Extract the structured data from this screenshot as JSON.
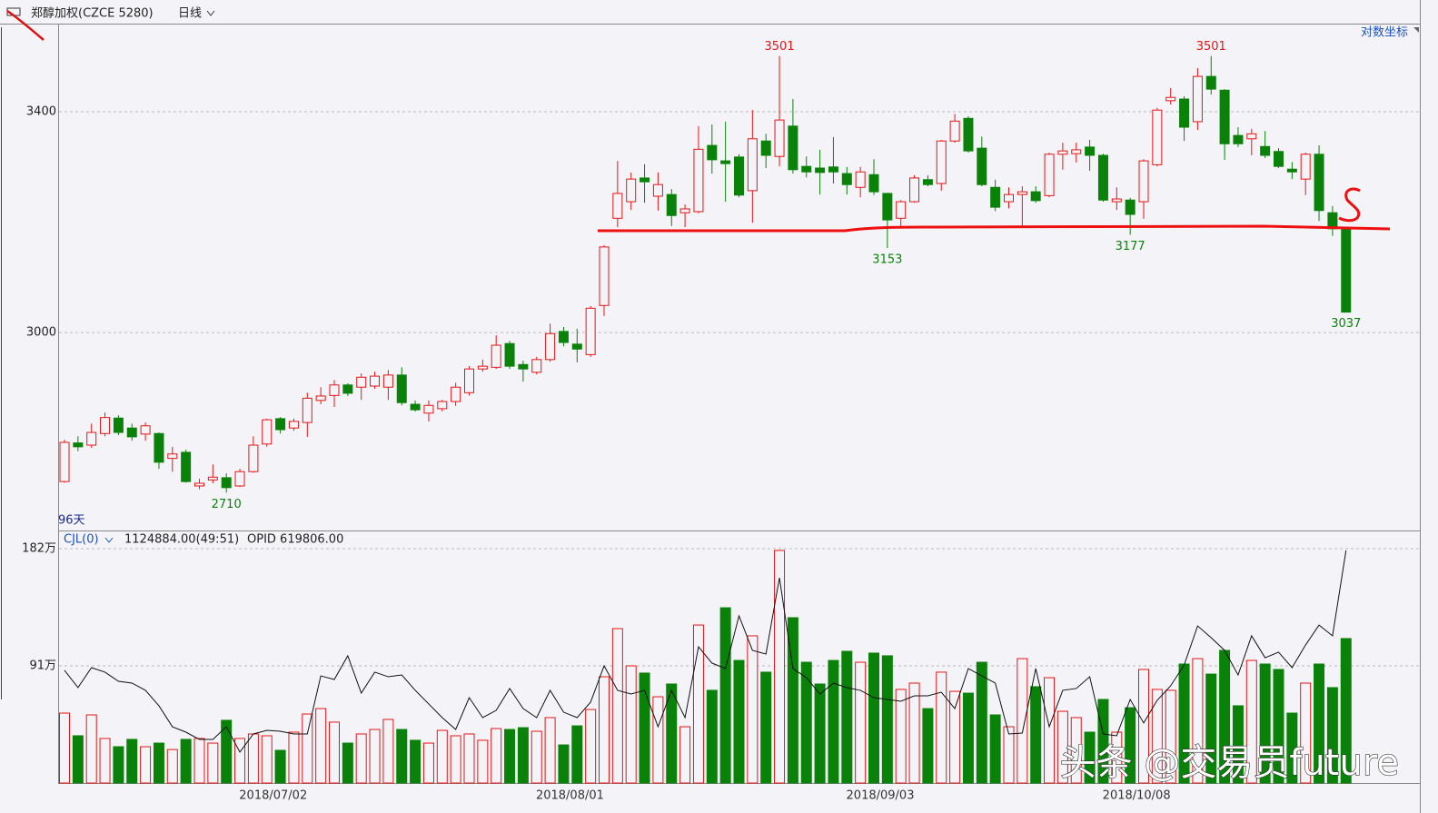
{
  "chart_data": [
    {
      "type": "candlestick",
      "title": "郑醇加权(CZCE 5280)",
      "period": "日线",
      "scale_button": "对数坐标",
      "day_count": "96天",
      "up_color": "#e81414",
      "down_color": "#0a820a",
      "log_scale": false,
      "grid": true,
      "ylim": [
        2643,
        3558
      ],
      "yticks": [
        3400,
        3000
      ],
      "categories": [
        null,
        null,
        null,
        null,
        null,
        null,
        null,
        null,
        null,
        null,
        null,
        null,
        null,
        null,
        null,
        "2018/07/02",
        null,
        null,
        null,
        null,
        null,
        null,
        null,
        null,
        null,
        null,
        null,
        null,
        null,
        null,
        null,
        null,
        null,
        null,
        null,
        null,
        null,
        "2018/08/01",
        null,
        null,
        null,
        null,
        null,
        null,
        null,
        null,
        null,
        null,
        null,
        null,
        null,
        null,
        null,
        null,
        null,
        null,
        null,
        null,
        null,
        null,
        "2018/09/03",
        null,
        null,
        null,
        null,
        null,
        null,
        null,
        null,
        null,
        null,
        null,
        null,
        null,
        null,
        null,
        null,
        null,
        null,
        "2018/10/08",
        null,
        null,
        null,
        null,
        null,
        null,
        null,
        null,
        null,
        null,
        null,
        null,
        null,
        null,
        null,
        null
      ],
      "open": [
        2730,
        2800,
        2796,
        2817,
        2845,
        2827,
        2816,
        2817,
        2772,
        2783,
        2722,
        2733,
        2737,
        2722,
        2748,
        2798,
        2844,
        2827,
        2837,
        2877,
        2886,
        2905,
        2901,
        2903,
        2901,
        2923,
        2870,
        2854,
        2862,
        2875,
        2891,
        2934,
        2937,
        2980,
        2942,
        2928,
        2951,
        3002,
        2979,
        2960,
        3049,
        3207,
        3237,
        3280,
        3247,
        3250,
        3217,
        3219,
        3339,
        3311,
        3318,
        3257,
        3347,
        3319,
        3374,
        3301,
        3298,
        3300,
        3288,
        3263,
        3286,
        3252,
        3207,
        3237,
        3277,
        3270,
        3347,
        3388,
        3334,
        3263,
        3237,
        3250,
        3255,
        3248,
        3323,
        3324,
        3336,
        3321,
        3237,
        3240,
        3237,
        3304,
        3420,
        3423,
        3382,
        3464,
        3439,
        3357,
        3351,
        3337,
        3328,
        3296,
        3278,
        3323,
        3217,
        3189
      ],
      "high": [
        2806,
        2812,
        2835,
        2855,
        2850,
        2835,
        2837,
        2819,
        2793,
        2788,
        2735,
        2761,
        2745,
        2753,
        2812,
        2844,
        2847,
        2844,
        2891,
        2901,
        2914,
        2908,
        2926,
        2929,
        2932,
        2937,
        2877,
        2877,
        2878,
        2909,
        2939,
        2951,
        2995,
        2985,
        2949,
        2956,
        3016,
        3010,
        3007,
        3048,
        3158,
        3311,
        3290,
        3305,
        3290,
        3260,
        3232,
        3374,
        3377,
        3382,
        3323,
        3403,
        3360,
        3501,
        3423,
        3319,
        3331,
        3354,
        3300,
        3300,
        3314,
        3253,
        3240,
        3285,
        3285,
        3349,
        3396,
        3392,
        3355,
        3277,
        3263,
        3265,
        3265,
        3326,
        3344,
        3344,
        3349,
        3324,
        3263,
        3244,
        3314,
        3407,
        3443,
        3428,
        3479,
        3501,
        3441,
        3372,
        3369,
        3365,
        3334,
        3309,
        3326,
        3339,
        3229,
        3190
      ],
      "low": [
        2728,
        2785,
        2791,
        2812,
        2814,
        2804,
        2804,
        2753,
        2748,
        2728,
        2716,
        2727,
        2710,
        2720,
        2746,
        2793,
        2817,
        2822,
        2811,
        2870,
        2865,
        2885,
        2878,
        2898,
        2878,
        2868,
        2857,
        2839,
        2857,
        2867,
        2886,
        2929,
        2934,
        2934,
        2911,
        2924,
        2947,
        2975,
        2946,
        2956,
        3030,
        3191,
        3222,
        3235,
        3221,
        3193,
        3191,
        3216,
        3288,
        3237,
        3245,
        3199,
        3298,
        3301,
        3288,
        3281,
        3250,
        3270,
        3250,
        3245,
        3249,
        3153,
        3189,
        3235,
        3265,
        3257,
        3344,
        3326,
        3265,
        3220,
        3225,
        3191,
        3235,
        3245,
        3295,
        3308,
        3293,
        3237,
        3222,
        3177,
        3206,
        3301,
        3413,
        3347,
        3367,
        3431,
        3313,
        3336,
        3321,
        3316,
        3298,
        3278,
        3249,
        3202,
        3175,
        3037
      ],
      "close": [
        2801,
        2793,
        2819,
        2846,
        2819,
        2811,
        2831,
        2765,
        2780,
        2730,
        2727,
        2738,
        2719,
        2748,
        2796,
        2842,
        2824,
        2839,
        2881,
        2885,
        2905,
        2890,
        2919,
        2921,
        2923,
        2873,
        2860,
        2868,
        2875,
        2901,
        2934,
        2939,
        2977,
        2939,
        2934,
        2951,
        2998,
        2982,
        2970,
        3044,
        3155,
        3252,
        3278,
        3273,
        3268,
        3212,
        3224,
        3332,
        3313,
        3306,
        3249,
        3351,
        3321,
        3385,
        3295,
        3291,
        3290,
        3291,
        3268,
        3291,
        3255,
        3204,
        3237,
        3280,
        3268,
        3347,
        3383,
        3329,
        3268,
        3227,
        3250,
        3255,
        3239,
        3323,
        3329,
        3331,
        3321,
        3240,
        3242,
        3214,
        3311,
        3403,
        3426,
        3372,
        3464,
        3441,
        3342,
        3342,
        3360,
        3321,
        3301,
        3291,
        3323,
        3221,
        3188,
        3037
      ]
    },
    {
      "type": "volume",
      "title": "CJL(0)",
      "volume_text": "1124884.00(49:51)",
      "oi_text": "OPID 619806.00",
      "grid": true,
      "ylim": [
        0,
        195.4
      ],
      "yticks": [
        {
          "value": 182,
          "label": "182万"
        },
        {
          "value": 91,
          "label": "91万"
        }
      ],
      "series": [
        {
          "type": "bar",
          "values": [
            54.3,
            36.7,
            52.9,
            34.6,
            28.2,
            33.9,
            28.2,
            31,
            26,
            33.9,
            34.6,
            31,
            48.7,
            34.6,
            38.1,
            36.7,
            25.4,
            39.5,
            53.6,
            57.8,
            47.3,
            31,
            38.1,
            41.6,
            49.4,
            41.6,
            33.2,
            31,
            40.9,
            36.7,
            38.1,
            33.2,
            42.3,
            41.6,
            43,
            40.2,
            50.8,
            29.6,
            44.4,
            57.1,
            82.5,
            119.9,
            91,
            85.4,
            67,
            76.9,
            43.7,
            122.7,
            72,
            136.1,
            95.2,
            114.3,
            86.1,
            180.6,
            128.4,
            93.8,
            76.9,
            95.2,
            102.3,
            93.8,
            100.9,
            98.8,
            72.7,
            77.6,
            57.8,
            86.1,
            71.2,
            69.8,
            93.8,
            52.9,
            43.7,
            96.6,
            74.8,
            81.8,
            55.7,
            50.8,
            39.5,
            64.9,
            39.5,
            58.5,
            88.2,
            72.7,
            72,
            92.4,
            96.6,
            84.6,
            103,
            60,
            95.2,
            92.4,
            88.2,
            54.3,
            77.6,
            92.4,
            74.1,
            112.2
          ]
        },
        {
          "type": "line",
          "color": "#111111",
          "values": [
            87.5,
            74.1,
            89.6,
            86.1,
            79,
            77.6,
            72,
            60,
            43.7,
            39.5,
            33.9,
            33.9,
            43.7,
            24,
            38.1,
            40.9,
            40.2,
            38.1,
            38.1,
            83.2,
            80.4,
            98.8,
            69.8,
            86.1,
            82.5,
            83.9,
            72,
            61.4,
            50.8,
            41.6,
            66.3,
            50.8,
            56.4,
            73.4,
            57.8,
            50.8,
            72,
            55,
            50.8,
            62.8,
            91,
            72,
            69.1,
            72,
            43.7,
            72,
            50.8,
            105.8,
            93.1,
            88.9,
            129.8,
            103,
            100.2,
            159.4,
            88.9,
            81.8,
            69.1,
            77.6,
            74.1,
            72,
            66.3,
            64.9,
            63.5,
            67.7,
            67.7,
            70.5,
            57.8,
            88.9,
            83.2,
            77.6,
            38.1,
            38.8,
            88.9,
            43.7,
            72,
            73.4,
            82.5,
            38.1,
            36.7,
            64.9,
            46.6,
            64.2,
            75.5,
            91.7,
            122,
            112.9,
            103,
            83.9,
            114.3,
            97.3,
            101.6,
            89.6,
            107.2,
            122.7,
            114.3,
            180.6
          ]
        }
      ]
    }
  ],
  "watermark": "头条 @交易员future"
}
